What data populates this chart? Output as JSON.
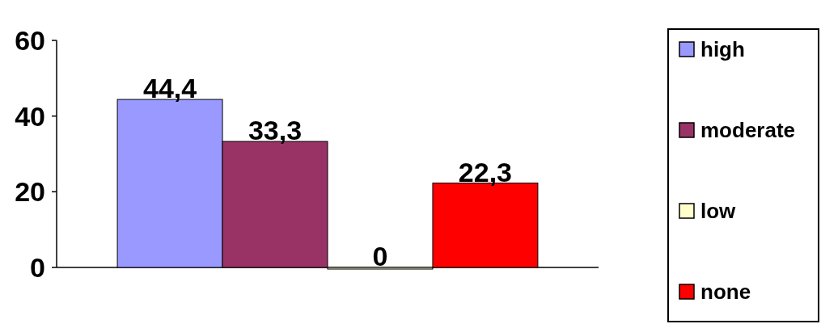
{
  "chart_data": {
    "type": "bar",
    "categories": [
      null
    ],
    "series": [
      {
        "name": "high",
        "color": "#9999ff",
        "values": [
          44.4
        ],
        "value_labels": [
          "44,4"
        ]
      },
      {
        "name": "moderate",
        "color": "#993366",
        "values": [
          33.3
        ],
        "value_labels": [
          "33,3"
        ]
      },
      {
        "name": "low",
        "color": "#ffffcc",
        "values": [
          0
        ],
        "value_labels": [
          "0"
        ]
      },
      {
        "name": "none",
        "color": "#ff0000",
        "values": [
          22.3
        ],
        "value_labels": [
          "22,3"
        ]
      }
    ],
    "ylim": [
      0,
      60
    ],
    "yticks": [
      0,
      20,
      40,
      60
    ],
    "grid": false,
    "legend": "right"
  }
}
